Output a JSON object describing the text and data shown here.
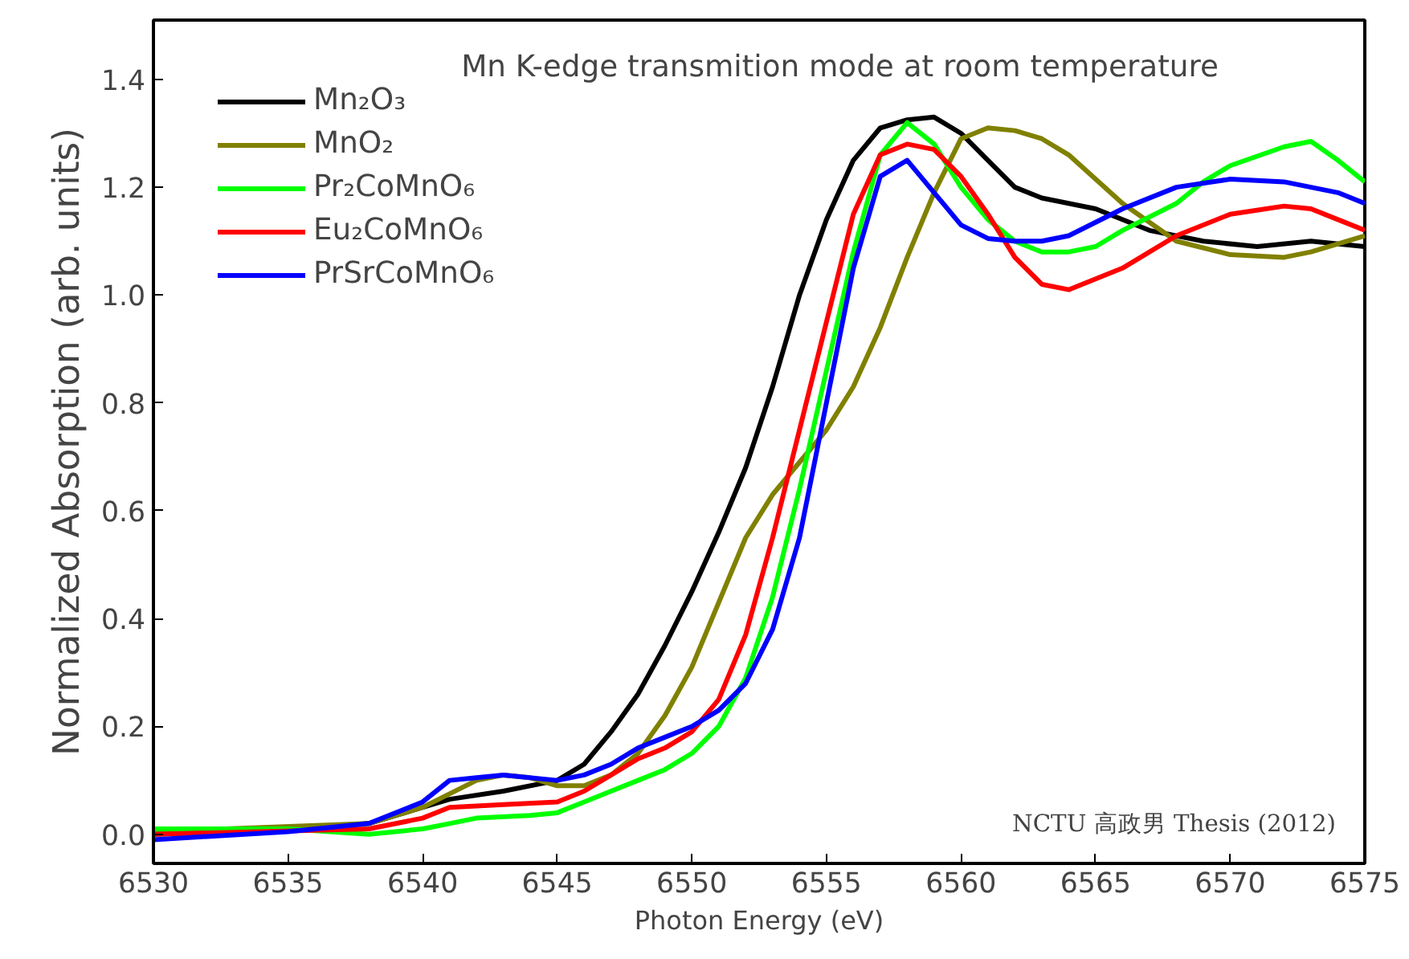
{
  "chart_data": {
    "type": "line",
    "title": "Mn K-edge transmition mode at room temperature",
    "xlabel": "Photon Energy (eV)",
    "ylabel": "Normalized Absorption (arb. units)",
    "xlim": [
      6530,
      6575
    ],
    "ylim": [
      -0.054,
      1.51
    ],
    "xticks": [
      6530,
      6535,
      6540,
      6545,
      6550,
      6555,
      6560,
      6565,
      6570,
      6575
    ],
    "yticks": [
      {
        "value": 0,
        "label": "0.0"
      },
      {
        "value": 0.2,
        "label": "0.2"
      },
      {
        "value": 0.4,
        "label": "0.4"
      },
      {
        "value": 0.6,
        "label": "0.6"
      },
      {
        "value": 0.8,
        "label": "0.8"
      },
      {
        "value": 1.0,
        "label": "1.0"
      },
      {
        "value": 1.2,
        "label": "1.2"
      },
      {
        "value": 1.4,
        "label": "1.4"
      }
    ],
    "grid": false,
    "legend": "top left",
    "marker": "none",
    "line_style": "solid",
    "annotations": [
      "NCTU 高政男 Thesis (2012)"
    ],
    "series": [
      {
        "name": "Mn₂O₃",
        "color": "#000000",
        "x": [
          6530,
          6535,
          6538,
          6540,
          6541,
          6543,
          6545,
          6546,
          6547,
          6548,
          6549,
          6550,
          6551,
          6552,
          6553,
          6554,
          6555,
          6556,
          6557,
          6558,
          6559,
          6560,
          6561,
          6562,
          6563,
          6565,
          6567,
          6569,
          6571,
          6573,
          6575
        ],
        "values": [
          0.0,
          0.01,
          0.02,
          0.05,
          0.065,
          0.08,
          0.1,
          0.13,
          0.19,
          0.26,
          0.35,
          0.45,
          0.56,
          0.68,
          0.83,
          1.0,
          1.14,
          1.25,
          1.31,
          1.325,
          1.33,
          1.3,
          1.25,
          1.2,
          1.18,
          1.16,
          1.12,
          1.1,
          1.09,
          1.1,
          1.09
        ]
      },
      {
        "name": "MnO₂",
        "color": "#808000",
        "x": [
          6530,
          6538,
          6540,
          6542,
          6543,
          6544,
          6545,
          6546,
          6547,
          6548,
          6549,
          6550,
          6551,
          6552,
          6553,
          6554,
          6555,
          6556,
          6557,
          6558,
          6559,
          6560,
          6561,
          6562,
          6563,
          6564,
          6566,
          6568,
          6570,
          6572,
          6573,
          6575
        ],
        "values": [
          0.005,
          0.02,
          0.05,
          0.1,
          0.11,
          0.105,
          0.09,
          0.09,
          0.11,
          0.15,
          0.22,
          0.31,
          0.43,
          0.55,
          0.63,
          0.69,
          0.75,
          0.83,
          0.94,
          1.07,
          1.19,
          1.29,
          1.31,
          1.305,
          1.29,
          1.26,
          1.17,
          1.1,
          1.075,
          1.07,
          1.08,
          1.11
        ]
      },
      {
        "name": "Pr₂CoMnO₆",
        "color": "#00ff00",
        "x": [
          6530,
          6535,
          6538,
          6540,
          6541,
          6542,
          6544,
          6545,
          6546,
          6547,
          6548,
          6549,
          6550,
          6551,
          6552,
          6553,
          6554,
          6555,
          6556,
          6557,
          6558,
          6559,
          6560,
          6561,
          6562,
          6563,
          6564,
          6565,
          6566,
          6568,
          6569,
          6570,
          6572,
          6573,
          6574,
          6575
        ],
        "values": [
          0.01,
          0.01,
          0.0,
          0.01,
          0.02,
          0.03,
          0.035,
          0.04,
          0.06,
          0.08,
          0.1,
          0.12,
          0.15,
          0.2,
          0.29,
          0.44,
          0.64,
          0.86,
          1.08,
          1.26,
          1.32,
          1.28,
          1.2,
          1.14,
          1.1,
          1.08,
          1.08,
          1.09,
          1.12,
          1.17,
          1.21,
          1.24,
          1.275,
          1.285,
          1.25,
          1.21
        ]
      },
      {
        "name": "Eu₂CoMnO₆",
        "color": "#ff0000",
        "x": [
          6530,
          6538,
          6540,
          6541,
          6543,
          6545,
          6546,
          6547,
          6548,
          6549,
          6550,
          6551,
          6552,
          6553,
          6554,
          6555,
          6556,
          6557,
          6558,
          6559,
          6560,
          6561,
          6562,
          6563,
          6564,
          6566,
          6568,
          6570,
          6572,
          6573,
          6574,
          6575
        ],
        "values": [
          0.0,
          0.01,
          0.03,
          0.05,
          0.055,
          0.06,
          0.08,
          0.11,
          0.14,
          0.16,
          0.19,
          0.25,
          0.37,
          0.55,
          0.75,
          0.95,
          1.15,
          1.26,
          1.28,
          1.27,
          1.22,
          1.15,
          1.07,
          1.02,
          1.01,
          1.05,
          1.11,
          1.15,
          1.165,
          1.16,
          1.14,
          1.12
        ]
      },
      {
        "name": "PrSrCoMnO₆",
        "color": "#0000ff",
        "x": [
          6530,
          6535,
          6538,
          6540,
          6541,
          6542,
          6543,
          6545,
          6546,
          6547,
          6548,
          6549,
          6550,
          6551,
          6552,
          6553,
          6554,
          6555,
          6556,
          6557,
          6558,
          6559,
          6560,
          6561,
          6562,
          6563,
          6564,
          6566,
          6568,
          6570,
          6572,
          6574,
          6575
        ],
        "values": [
          -0.01,
          0.005,
          0.02,
          0.06,
          0.1,
          0.105,
          0.11,
          0.1,
          0.11,
          0.13,
          0.16,
          0.18,
          0.2,
          0.23,
          0.28,
          0.38,
          0.55,
          0.8,
          1.05,
          1.22,
          1.25,
          1.19,
          1.13,
          1.105,
          1.1,
          1.1,
          1.11,
          1.16,
          1.2,
          1.215,
          1.21,
          1.19,
          1.17
        ]
      }
    ]
  }
}
